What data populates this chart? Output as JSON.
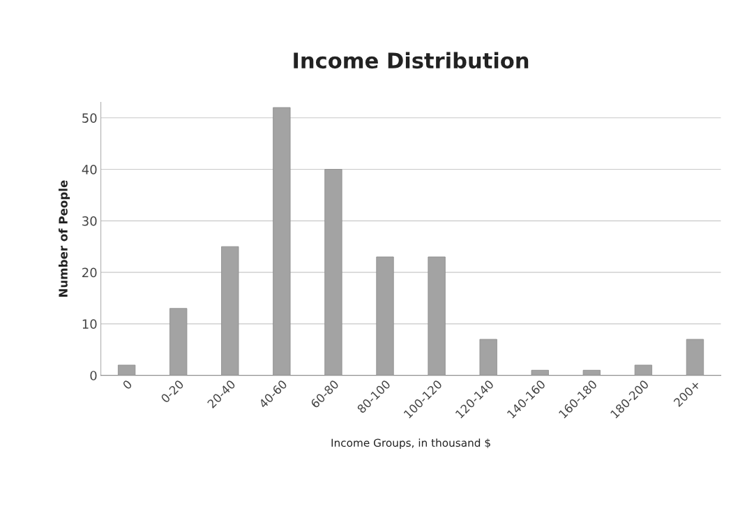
{
  "chart_data": {
    "type": "bar",
    "title": "Income Distribution",
    "xlabel": "Income Groups, in thousand $",
    "ylabel": "Number of People",
    "categories": [
      "0",
      "0-20",
      "20-40",
      "40-60",
      "60-80",
      "80-100",
      "100-120",
      "120-140",
      "140-160",
      "160-180",
      "180-200",
      "200+"
    ],
    "values": [
      2,
      13,
      25,
      52,
      40,
      23,
      23,
      7,
      1,
      1,
      2,
      7
    ],
    "color": "#a3a3a3",
    "ylim": [
      0,
      53
    ],
    "yticks": [
      0,
      10,
      20,
      30,
      40,
      50
    ],
    "grid": "y",
    "legend": false
  }
}
